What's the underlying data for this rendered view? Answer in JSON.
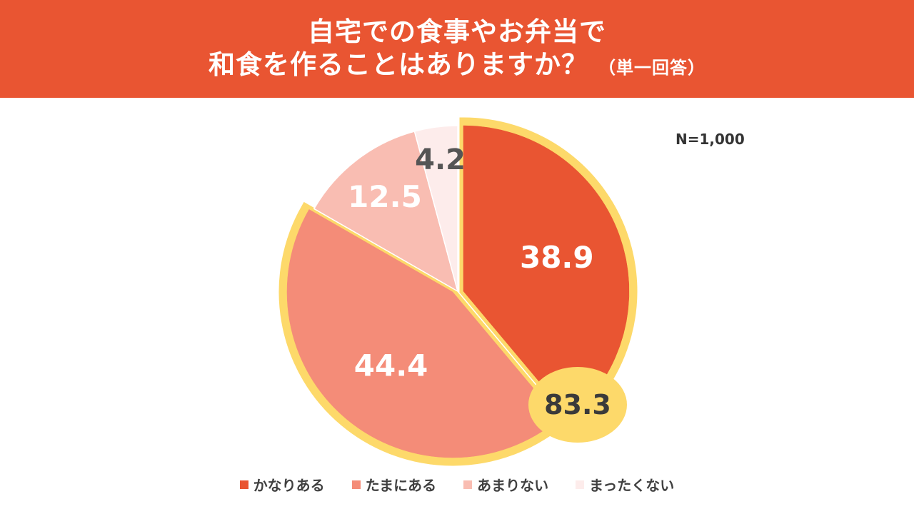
{
  "header": {
    "title_line1": "自宅での食事やお弁当で",
    "title_line2": "和食を作ることはありますか？",
    "title_note": "（単一回答）",
    "background": "#e95532"
  },
  "sample_size": "N=1,000",
  "chart_data": {
    "type": "pie",
    "title": "自宅での食事やお弁当で和食を作ることはありますか？",
    "subtitle": "（単一回答）",
    "categories": [
      "かなりある",
      "たまにある",
      "あまりない",
      "まったくない"
    ],
    "values": [
      38.9,
      44.4,
      12.5,
      4.2
    ],
    "value_labels": [
      "38.9",
      "44.4",
      "12.5",
      "4.2"
    ],
    "colors": [
      "#e95532",
      "#f48c78",
      "#f9bdb2",
      "#fdeceb"
    ],
    "label_colors": [
      "#ffffff",
      "#ffffff",
      "#ffffff",
      "#555555"
    ],
    "start_angle": "12 o'clock",
    "direction": "clockwise",
    "legend_position": "bottom",
    "highlight": {
      "slices": [
        "かなりある",
        "たまにある"
      ],
      "total_label": "83.3",
      "color": "#fdd96a"
    }
  }
}
